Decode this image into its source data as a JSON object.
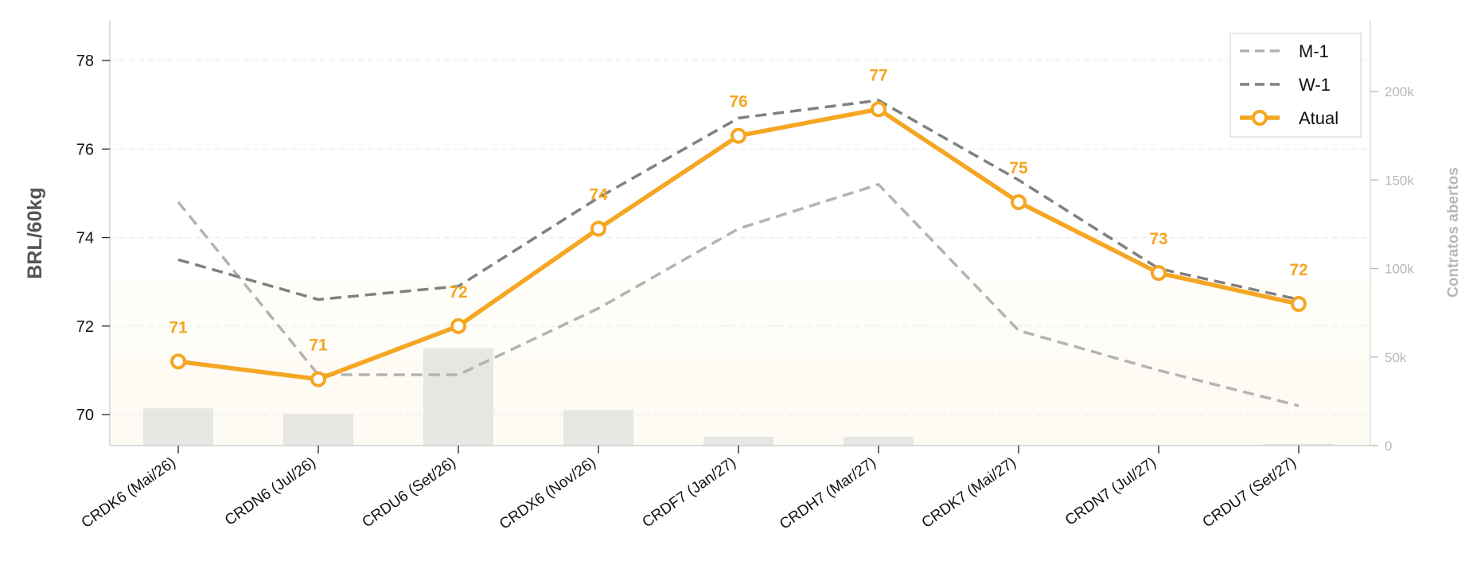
{
  "chart_data": {
    "type": "line",
    "categories": [
      "CRDK6 (Mai/26)",
      "CRDN6 (Jul/26)",
      "CRDU6 (Set/26)",
      "CRDX6 (Nov/26)",
      "CRDF7 (Jan/27)",
      "CRDH7 (Mar/27)",
      "CRDK7 (Mai/27)",
      "CRDN7 (Jul/27)",
      "CRDU7 (Set/27)"
    ],
    "series": [
      {
        "name": "M-1",
        "style": "dashed",
        "color": "#b3b3b3",
        "values": [
          74.8,
          70.9,
          70.9,
          72.4,
          74.2,
          75.2,
          71.9,
          71.0,
          70.2
        ]
      },
      {
        "name": "W-1",
        "style": "dashed",
        "color": "#808080",
        "values": [
          73.5,
          72.6,
          72.9,
          74.9,
          76.7,
          77.1,
          75.3,
          73.3,
          72.6
        ]
      },
      {
        "name": "Atual",
        "style": "solid-markers",
        "color": "#f5a623",
        "values": [
          71.2,
          70.8,
          72.0,
          74.2,
          76.3,
          76.9,
          74.8,
          73.2,
          72.5
        ]
      }
    ],
    "point_labels": [
      "71",
      "71",
      "72",
      "74",
      "76",
      "77",
      "75",
      "73",
      "72"
    ],
    "bars": {
      "name": "Contratos abertos",
      "color": "#e6e6e3",
      "values": [
        21000,
        18000,
        55000,
        20000,
        5000,
        5000,
        0,
        0,
        1000
      ]
    },
    "ylabel": "BRL/60kg",
    "ylim": [
      69.3,
      78.9
    ],
    "yticks": [
      70,
      72,
      74,
      76,
      78
    ],
    "y2label": "Contratos abertos",
    "y2lim": [
      0,
      240000
    ],
    "y2ticks": [
      0,
      50000,
      100000,
      150000,
      200000
    ],
    "y2ticklabels": [
      "0",
      "50k",
      "100k",
      "150k",
      "200k"
    ],
    "grid": "horizontal-dashed",
    "legend": "top-right",
    "legend_entries": [
      "M-1",
      "W-1",
      "Atual"
    ],
    "colors": {
      "accent": "#f5a623",
      "shade": "#fdfbf3",
      "grid": "#eeeeee",
      "axis2": "#b8b8b8"
    }
  }
}
